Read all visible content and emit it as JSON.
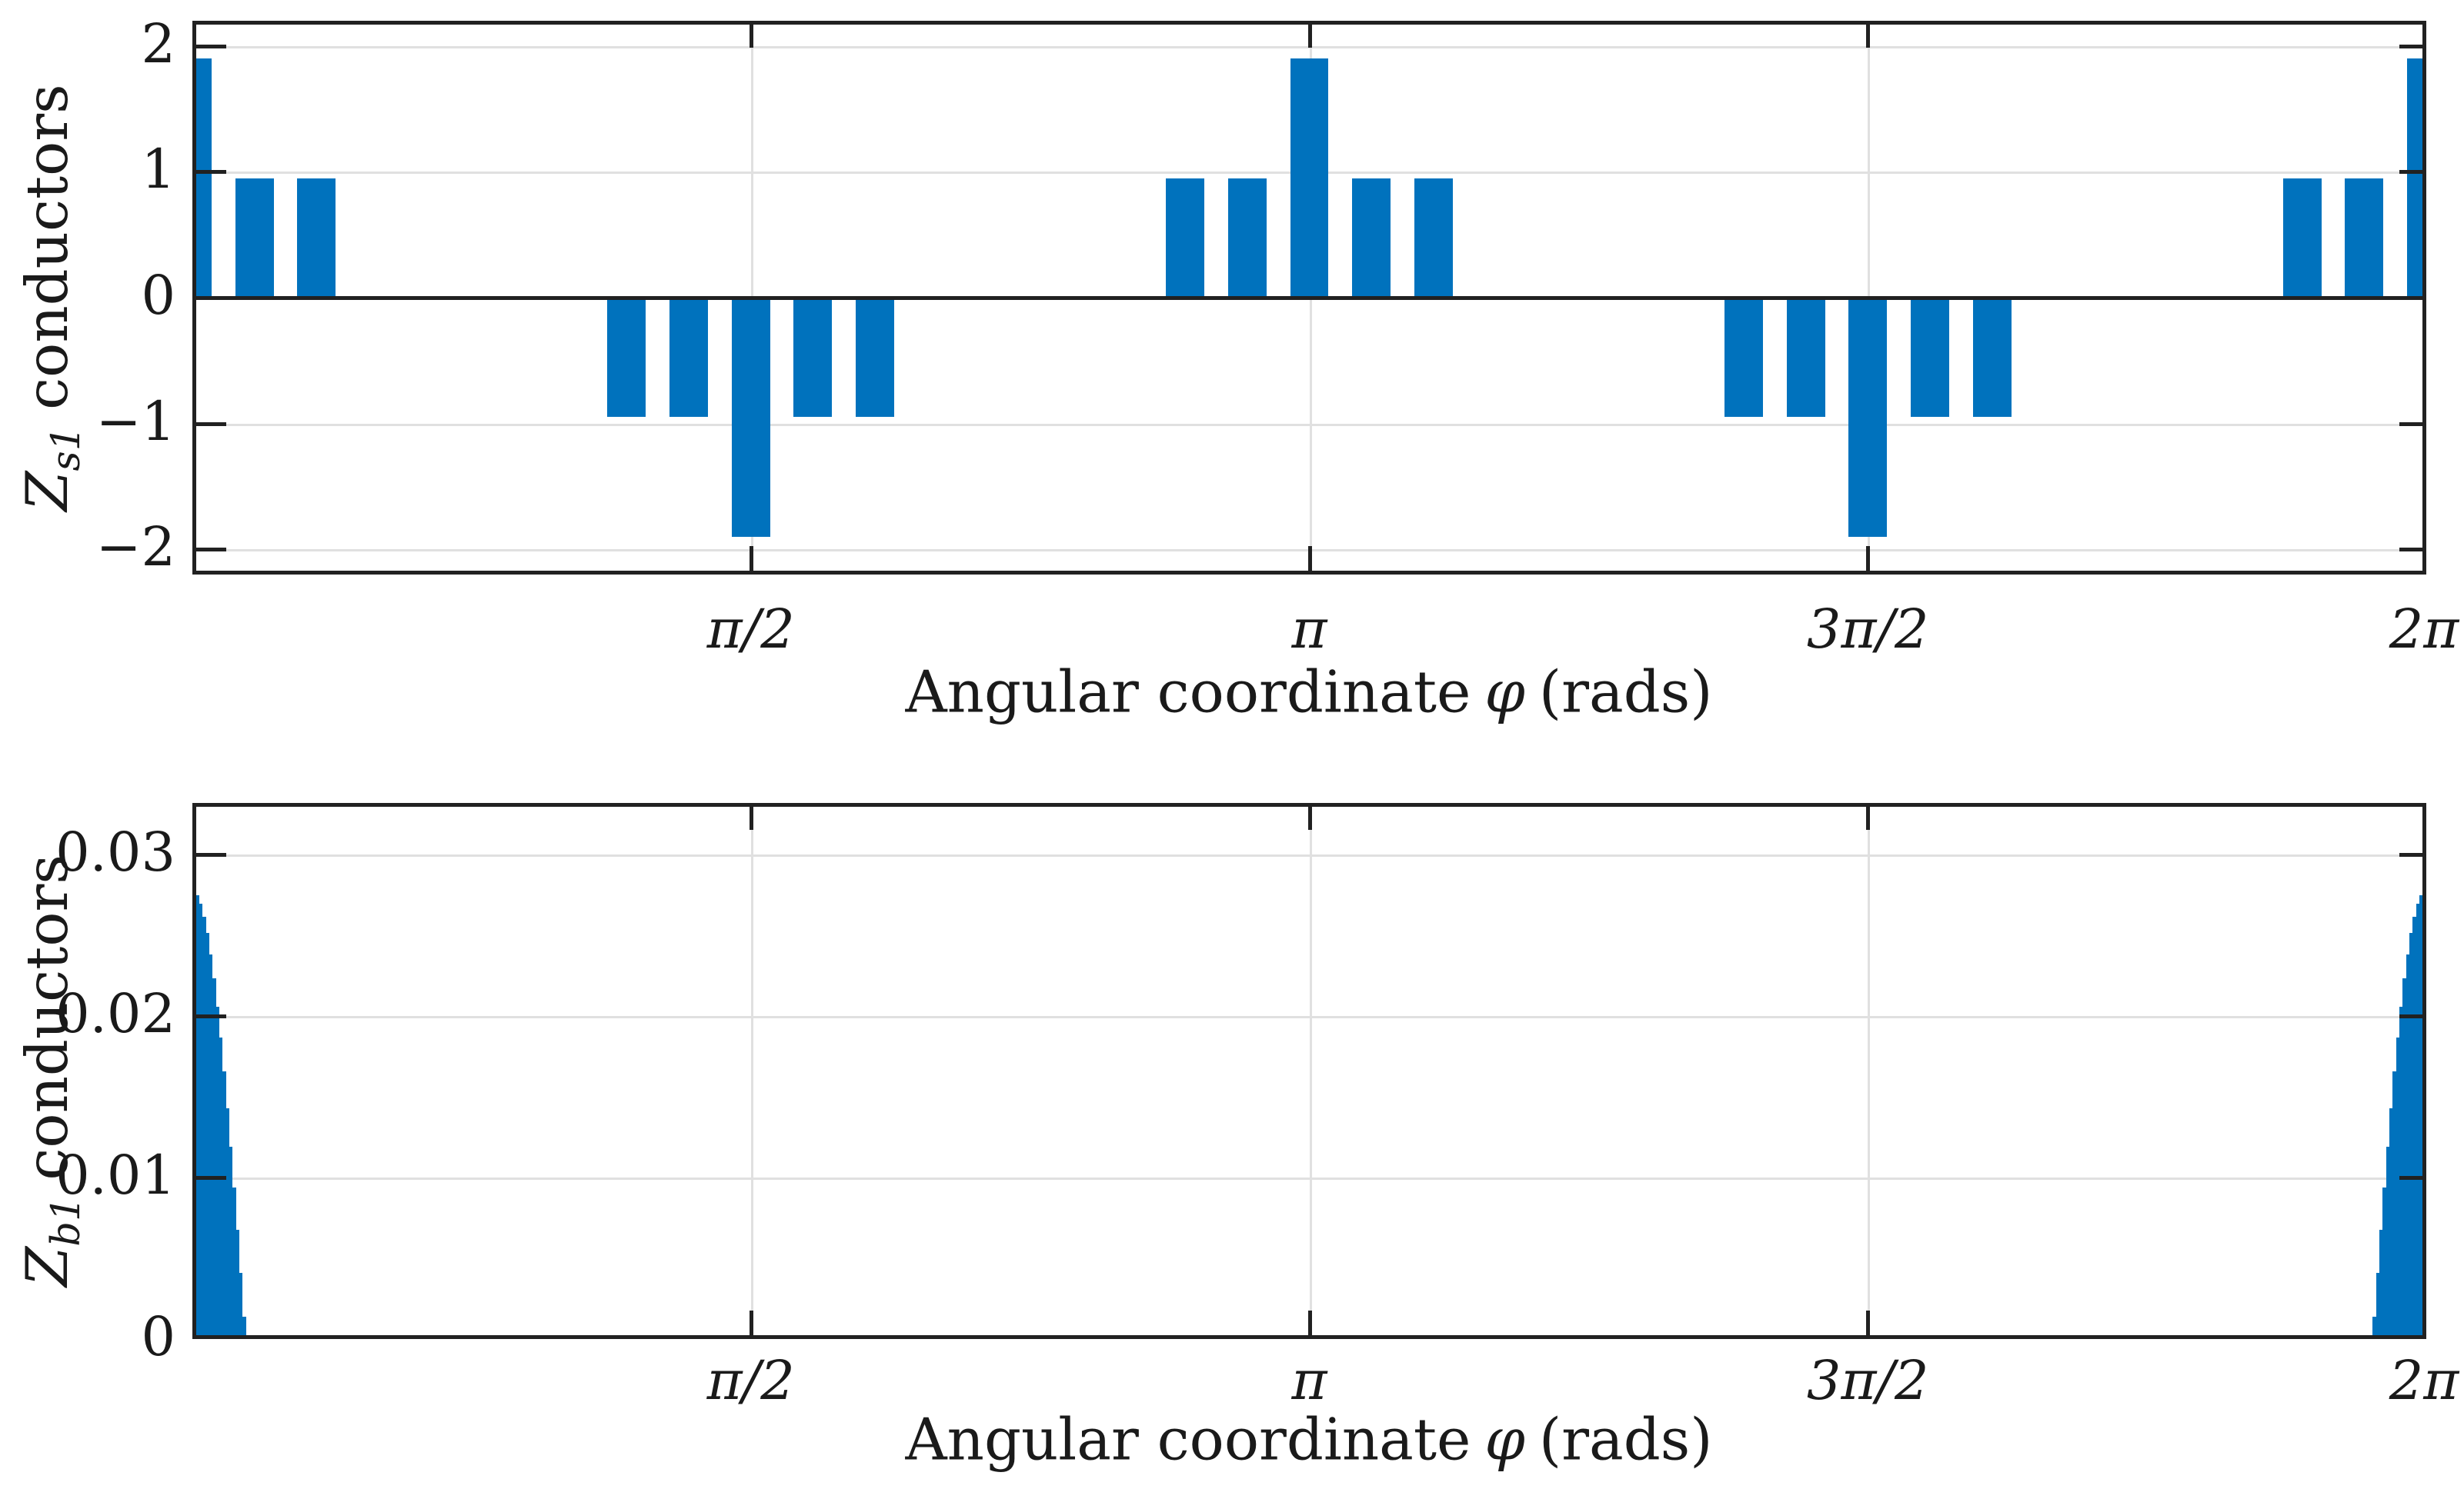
{
  "figure": {
    "background": "#ffffff",
    "bar_color": "#0072BD",
    "grid_color": "#e0e0e0",
    "axis_color": "#212121",
    "text_color": "#1a1a1a"
  },
  "chart_data": [
    {
      "type": "bar",
      "title": "",
      "ylabel": "Z_s1 conductors",
      "ylabel_parts": {
        "var": "Z",
        "sub": "s1",
        "rest": "conductors"
      },
      "xlabel": "Angular coordinate φ (rads)",
      "xlabel_parts": {
        "pre": "Angular coordinate",
        "symbol": "φ",
        "post": "(rads)"
      },
      "xlim_rad": [
        0,
        6.2832
      ],
      "ylim": [
        -2.2,
        2.2
      ],
      "grid": true,
      "legend": null,
      "xticks": [
        {
          "value": 1.5708,
          "label": "π/2"
        },
        {
          "value": 3.1416,
          "label": "π"
        },
        {
          "value": 4.7124,
          "label": "3π/2"
        },
        {
          "value": 6.2832,
          "label": "2π"
        }
      ],
      "yticks": [
        {
          "value": 2,
          "label": "2"
        },
        {
          "value": 1,
          "label": "1"
        },
        {
          "value": 0,
          "label": "0"
        },
        {
          "value": -1,
          "label": "−1"
        },
        {
          "value": -2,
          "label": "−2"
        }
      ],
      "bar_width_deg": 6.2,
      "slot_pitch_deg": 10,
      "bars": [
        {
          "phi_deg": 0,
          "value": 1.9
        },
        {
          "phi_deg": 10,
          "value": 0.95
        },
        {
          "phi_deg": 20,
          "value": 0.95
        },
        {
          "phi_deg": 70,
          "value": -0.95
        },
        {
          "phi_deg": 80,
          "value": -0.95
        },
        {
          "phi_deg": 90,
          "value": -1.9
        },
        {
          "phi_deg": 100,
          "value": -0.95
        },
        {
          "phi_deg": 110,
          "value": -0.95
        },
        {
          "phi_deg": 160,
          "value": 0.95
        },
        {
          "phi_deg": 170,
          "value": 0.95
        },
        {
          "phi_deg": 180,
          "value": 1.9
        },
        {
          "phi_deg": 190,
          "value": 0.95
        },
        {
          "phi_deg": 200,
          "value": 0.95
        },
        {
          "phi_deg": 250,
          "value": -0.95
        },
        {
          "phi_deg": 260,
          "value": -0.95
        },
        {
          "phi_deg": 270,
          "value": -1.9
        },
        {
          "phi_deg": 280,
          "value": -0.95
        },
        {
          "phi_deg": 290,
          "value": -0.95
        },
        {
          "phi_deg": 340,
          "value": 0.95
        },
        {
          "phi_deg": 350,
          "value": 0.95
        },
        {
          "phi_deg": 360,
          "value": 1.9
        }
      ]
    },
    {
      "type": "bar",
      "title": "",
      "ylabel": "Z_b1 conductors",
      "ylabel_parts": {
        "var": "Z",
        "sub": "b1",
        "rest": "conductors"
      },
      "xlabel": "Angular coordinate φ (rads)",
      "xlabel_parts": {
        "pre": "Angular coordinate",
        "symbol": "φ",
        "post": "(rads)"
      },
      "xlim_rad": [
        0,
        6.2832
      ],
      "ylim": [
        0,
        0.0332
      ],
      "grid": true,
      "legend": null,
      "xticks": [
        {
          "value": 1.5708,
          "label": "π/2"
        },
        {
          "value": 3.1416,
          "label": "π"
        },
        {
          "value": 4.7124,
          "label": "3π/2"
        },
        {
          "value": 6.2832,
          "label": "2π"
        }
      ],
      "yticks": [
        {
          "value": 0.03,
          "label": "0.03"
        },
        {
          "value": 0.02,
          "label": "0.02"
        },
        {
          "value": 0.01,
          "label": "0.01"
        },
        {
          "value": 0,
          "label": "0"
        }
      ],
      "edge_clusters": {
        "description": "dense thin bars hugging 0 and 2π, quarter-cosine envelope",
        "peak": 0.0278,
        "bar_pitch_rad": 0.0094,
        "extent_rad": 0.15,
        "heights": [
          0.02777,
          0.0275,
          0.02697,
          0.02617,
          0.02513,
          0.02384,
          0.02233,
          0.0206,
          0.01867,
          0.01656,
          0.01429,
          0.01189,
          0.00937,
          0.00676,
          0.00408,
          0.00136
        ]
      }
    }
  ]
}
